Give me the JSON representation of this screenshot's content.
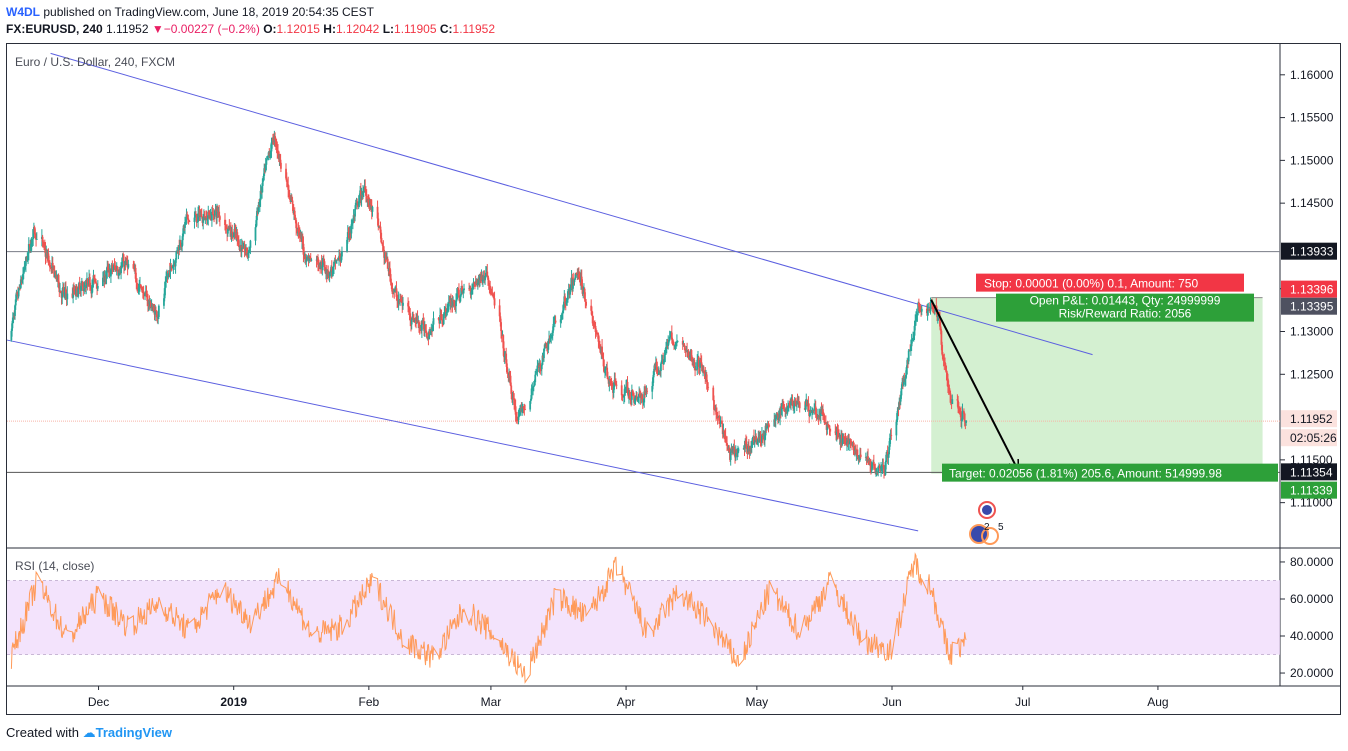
{
  "header": {
    "author": "W4DL",
    "published": "published on TradingView.com, June 18, 2019 20:54:35 CEST",
    "symbol": "FX:EURUSD, 240",
    "last": "1.11952",
    "change": "−0.00227 (−0.2%)",
    "o_label": "O:",
    "o": "1.12015",
    "h_label": "H:",
    "h": "1.12042",
    "l_label": "L:",
    "l": "1.11905",
    "c_label": "C:",
    "c": "1.11952"
  },
  "legend": {
    "main": "Euro / U.S. Dollar, 240, FXCM",
    "rsi": "RSI (14, close)"
  },
  "position": {
    "stop_label": "Stop: 0.00001 (0.00%) 0.1, Amount: 750",
    "pnl_label": "Open P&L: 0.01443, Qty: 24999999",
    "rr_label": "Risk/Reward Ratio: 2056",
    "target_label": "Target: 0.02056 (1.81%) 205.6, Amount: 514999.98"
  },
  "price_tags": {
    "h1": "1.13933",
    "stop": "1.13396",
    "entry": "1.13395",
    "last": "1.11952",
    "countdown": "02:05:26",
    "h2": "1.11354",
    "target": "1.11339"
  },
  "events": {
    "e1": "2",
    "e2": "5"
  },
  "footer": {
    "created": "Created with",
    "brand": "TradingView"
  },
  "colors": {
    "up": "#26a69a",
    "down": "#ef5350",
    "trend": "#5b5fe0",
    "rsi": "#ff9a59",
    "rsi_band": "#efd9fb",
    "profit_zone": "#d2efcf",
    "stop_tag": "#f23645",
    "target_tag": "#2da039",
    "hline": "#787b86"
  },
  "chart_data": [
    {
      "type": "candlestick",
      "title": "Euro / U.S. Dollar, 240, FXCM",
      "y_ticks": [
        "1.16000",
        "1.15500",
        "1.15000",
        "1.14500",
        "1.13500",
        "1.13000",
        "1.12500",
        "1.11500",
        "1.11000"
      ],
      "x_ticks": [
        "Dec",
        "2019",
        "Feb",
        "Mar",
        "Apr",
        "May",
        "Jun",
        "Jul",
        "Aug"
      ],
      "ylim": [
        1.1047,
        1.1636
      ],
      "xlim": [
        "2018-11-10",
        "2019-08-29"
      ],
      "series": [
        {
          "values_x": [
            "2018-11-10",
            "2018-11-16",
            "2018-11-23",
            "2018-11-30",
            "2018-12-07",
            "2018-12-14",
            "2018-12-21",
            "2018-12-28",
            "2019-01-04",
            "2019-01-10",
            "2019-01-17",
            "2019-01-24",
            "2019-01-31",
            "2019-02-07",
            "2019-02-14",
            "2019-02-21",
            "2019-02-28",
            "2019-03-07",
            "2019-03-14",
            "2019-03-21",
            "2019-03-28",
            "2019-04-04",
            "2019-04-11",
            "2019-04-18",
            "2019-04-25",
            "2019-05-02",
            "2019-05-09",
            "2019-05-16",
            "2019-05-23",
            "2019-05-30",
            "2019-06-04",
            "2019-06-07",
            "2019-06-11",
            "2019-06-14",
            "2019-06-18"
          ],
          "values_y": [
            1.129,
            1.142,
            1.134,
            1.136,
            1.138,
            1.132,
            1.143,
            1.144,
            1.139,
            1.153,
            1.139,
            1.137,
            1.147,
            1.134,
            1.13,
            1.134,
            1.137,
            1.119,
            1.129,
            1.137,
            1.124,
            1.122,
            1.129,
            1.126,
            1.115,
            1.118,
            1.122,
            1.12,
            1.116,
            1.114,
            1.125,
            1.133,
            1.133,
            1.122,
            1.1195
          ]
        }
      ],
      "horizontal_lines": [
        1.13933,
        1.11354,
        1.11952
      ],
      "trend_lines": [
        {
          "from": [
            "2018-11-20",
            1.1625
          ],
          "to": [
            "2019-07-17",
            1.1273
          ]
        },
        {
          "from": [
            "2018-11-10",
            1.129
          ],
          "to": [
            "2019-06-07",
            1.1067
          ]
        }
      ],
      "position": {
        "entry": 1.13395,
        "stop": 1.13396,
        "target": 1.11339,
        "start": "2019-06-10",
        "end": "2019-08-25"
      },
      "arrow": {
        "from": [
          "2019-06-10",
          1.1337
        ],
        "to": [
          "2019-06-30",
          1.1137
        ]
      },
      "grid": false
    },
    {
      "type": "line",
      "title": "RSI (14, close)",
      "y_ticks": [
        "80.0000",
        "60.0000",
        "40.0000",
        "20.0000"
      ],
      "ylim": [
        13,
        87
      ],
      "band": [
        30,
        70
      ],
      "series": [
        {
          "x": [
            "2018-11-10",
            "2018-11-17",
            "2018-11-24",
            "2018-12-01",
            "2018-12-08",
            "2018-12-15",
            "2018-12-22",
            "2018-12-29",
            "2019-01-05",
            "2019-01-12",
            "2019-01-19",
            "2019-01-26",
            "2019-02-02",
            "2019-02-09",
            "2019-02-16",
            "2019-02-23",
            "2019-03-02",
            "2019-03-09",
            "2019-03-16",
            "2019-03-23",
            "2019-03-30",
            "2019-04-06",
            "2019-04-13",
            "2019-04-20",
            "2019-04-27",
            "2019-05-04",
            "2019-05-11",
            "2019-05-18",
            "2019-05-25",
            "2019-06-01",
            "2019-06-06",
            "2019-06-10",
            "2019-06-14",
            "2019-06-18"
          ],
          "values": [
            22,
            70,
            38,
            62,
            45,
            58,
            42,
            66,
            48,
            72,
            40,
            45,
            70,
            38,
            28,
            55,
            40,
            18,
            62,
            50,
            78,
            40,
            64,
            48,
            25,
            65,
            42,
            70,
            38,
            32,
            80,
            66,
            30,
            37
          ]
        }
      ],
      "grid": false
    }
  ]
}
